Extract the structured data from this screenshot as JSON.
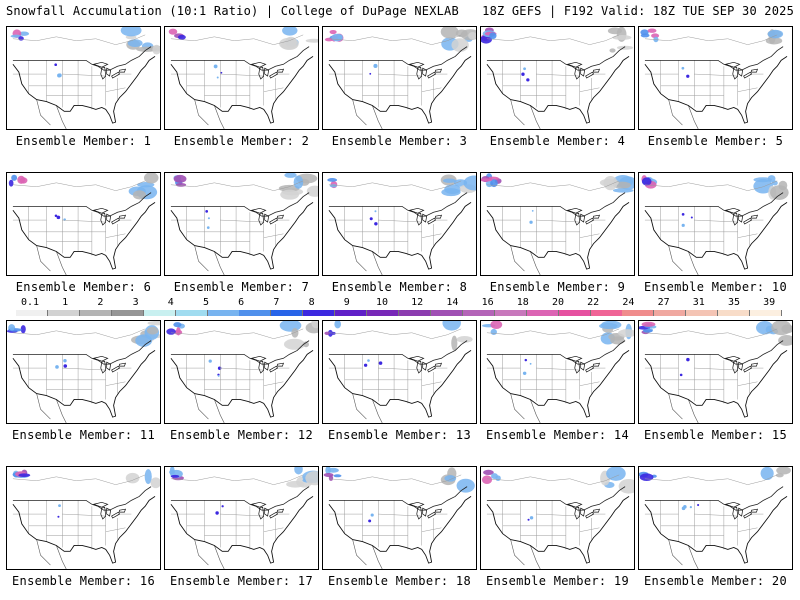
{
  "header": {
    "left": "Snowfall Accumulation (10:1 Ratio) | College of DuPage NEXLAB",
    "right": "18Z GEFS | F192 Valid: 18Z TUE SEP 30 2025"
  },
  "panels": [
    {
      "member": "Ensemble Member: 1"
    },
    {
      "member": "Ensemble Member: 2"
    },
    {
      "member": "Ensemble Member: 3"
    },
    {
      "member": "Ensemble Member: 4"
    },
    {
      "member": "Ensemble Member: 5"
    },
    {
      "member": "Ensemble Member: 6"
    },
    {
      "member": "Ensemble Member: 7"
    },
    {
      "member": "Ensemble Member: 8"
    },
    {
      "member": "Ensemble Member: 9"
    },
    {
      "member": "Ensemble Member: 10"
    },
    {
      "member": "Ensemble Member: 11"
    },
    {
      "member": "Ensemble Member: 12"
    },
    {
      "member": "Ensemble Member: 13"
    },
    {
      "member": "Ensemble Member: 14"
    },
    {
      "member": "Ensemble Member: 15"
    },
    {
      "member": "Ensemble Member: 16"
    },
    {
      "member": "Ensemble Member: 17"
    },
    {
      "member": "Ensemble Member: 18"
    },
    {
      "member": "Ensemble Member: 19"
    },
    {
      "member": "Ensemble Member: 20"
    }
  ],
  "colorbar": {
    "labels": [
      "0.1",
      "1",
      "2",
      "3",
      "4",
      "5",
      "6",
      "7",
      "8",
      "9",
      "10",
      "12",
      "14",
      "16",
      "18",
      "20",
      "22",
      "24",
      "27",
      "31",
      "35",
      "39"
    ],
    "colors": [
      "#f0f0f0",
      "#d2d2d2",
      "#b4b4b4",
      "#969696",
      "#c8f0f0",
      "#a0dcf0",
      "#78b4f0",
      "#5090ec",
      "#2864e8",
      "#3c28e0",
      "#6020c8",
      "#7828b8",
      "#8c3cb0",
      "#a050b4",
      "#b464b8",
      "#c878bc",
      "#dc64b4",
      "#e650a0",
      "#f06496",
      "#f08c8c",
      "#f0a8a0",
      "#f4c4b4",
      "#f8dcc8",
      "#fcefe0"
    ]
  }
}
